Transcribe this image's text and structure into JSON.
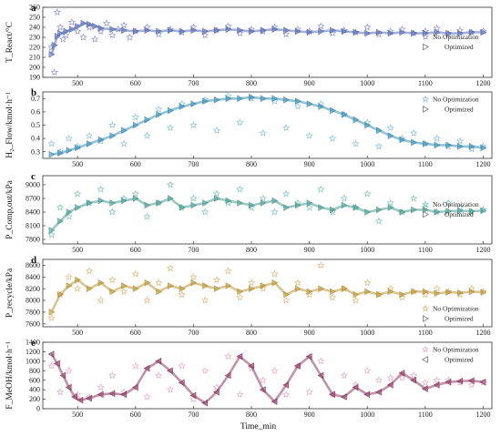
{
  "chart_data": [
    {
      "type": "scatter",
      "panel_label": "a",
      "ylabel": "T_React/°C",
      "xlabel": "",
      "xlim": [
        440,
        1215
      ],
      "ylim": [
        190,
        260
      ],
      "x_ticks": [
        500,
        600,
        700,
        800,
        900,
        1000,
        1100,
        1200
      ],
      "y_ticks": [
        190,
        200,
        210,
        220,
        230,
        240,
        250,
        260
      ],
      "legend": {
        "placement": "right"
      },
      "series": [
        {
          "name": "No Optimization",
          "marker": "star",
          "color": "#8a93d6",
          "x": [
            455,
            460,
            465,
            470,
            475,
            480,
            490,
            500,
            510,
            520,
            530,
            540,
            550,
            560,
            570,
            580,
            590,
            600,
            620,
            640,
            660,
            680,
            700,
            720,
            740,
            760,
            780,
            800,
            820,
            840,
            860,
            880,
            900,
            920,
            940,
            960,
            980,
            1000,
            1020,
            1040,
            1060,
            1080,
            1100,
            1120,
            1140,
            1160,
            1180,
            1200
          ],
          "y": [
            220,
            195,
            255,
            240,
            228,
            232,
            245,
            236,
            230,
            240,
            228,
            236,
            244,
            232,
            238,
            242,
            230,
            236,
            240,
            233,
            238,
            235,
            240,
            232,
            237,
            241,
            234,
            238,
            236,
            240,
            233,
            238,
            236,
            241,
            234,
            237,
            235,
            240,
            233,
            236,
            238,
            234,
            236,
            239,
            233,
            237,
            235,
            236
          ]
        },
        {
          "name": "Optimized",
          "marker": "triangle-right",
          "color": "#5b6fb0",
          "x": [
            455,
            460,
            465,
            470,
            480,
            490,
            500,
            510,
            520,
            530,
            540,
            560,
            580,
            600,
            620,
            640,
            660,
            680,
            700,
            720,
            740,
            760,
            780,
            800,
            820,
            840,
            860,
            880,
            900,
            920,
            940,
            960,
            980,
            1000,
            1020,
            1040,
            1060,
            1080,
            1100,
            1120,
            1140,
            1160,
            1180,
            1200
          ],
          "y": [
            213,
            222,
            231,
            234,
            236,
            238,
            241,
            244,
            243,
            241,
            239,
            238,
            237,
            236,
            237,
            236,
            237,
            236,
            237,
            236,
            237,
            238,
            237,
            236,
            237,
            238,
            237,
            236,
            235,
            236,
            237,
            236,
            235,
            234,
            235,
            234,
            235,
            234,
            234,
            235,
            234,
            234,
            235,
            235
          ]
        }
      ]
    },
    {
      "type": "scatter",
      "panel_label": "b",
      "ylabel": "H₂_Flow/kmol·h⁻¹",
      "xlabel": "",
      "xlim": [
        440,
        1215
      ],
      "ylim": [
        0.25,
        0.75
      ],
      "x_ticks": [
        500,
        600,
        700,
        800,
        900,
        1000,
        1100,
        1200
      ],
      "y_ticks": [
        0.3,
        0.4,
        0.5,
        0.6,
        0.7
      ],
      "legend": {
        "placement": "top-right"
      },
      "series": [
        {
          "name": "No Optimization",
          "marker": "star",
          "color": "#86c0d8",
          "x": [
            455,
            470,
            485,
            500,
            520,
            540,
            560,
            580,
            600,
            620,
            640,
            660,
            680,
            700,
            720,
            740,
            760,
            780,
            800,
            820,
            840,
            860,
            880,
            900,
            920,
            940,
            960,
            980,
            1000,
            1020,
            1040,
            1060,
            1080,
            1100,
            1120,
            1140,
            1160,
            1180,
            1200
          ],
          "y": [
            0.36,
            0.3,
            0.4,
            0.34,
            0.42,
            0.38,
            0.5,
            0.36,
            0.56,
            0.42,
            0.62,
            0.48,
            0.66,
            0.5,
            0.69,
            0.46,
            0.72,
            0.52,
            0.7,
            0.44,
            0.68,
            0.48,
            0.64,
            0.42,
            0.66,
            0.4,
            0.58,
            0.36,
            0.52,
            0.34,
            0.48,
            0.4,
            0.44,
            0.36,
            0.4,
            0.34,
            0.38,
            0.32,
            0.34
          ]
        },
        {
          "name": "Optimized",
          "marker": "triangle-right",
          "color": "#3f8fb3",
          "x": [
            455,
            470,
            485,
            500,
            520,
            540,
            560,
            580,
            600,
            620,
            640,
            660,
            680,
            700,
            720,
            740,
            760,
            780,
            800,
            820,
            840,
            860,
            880,
            900,
            920,
            940,
            960,
            980,
            1000,
            1020,
            1040,
            1060,
            1080,
            1100,
            1120,
            1140,
            1160,
            1180,
            1200
          ],
          "y": [
            0.28,
            0.29,
            0.31,
            0.33,
            0.36,
            0.39,
            0.42,
            0.46,
            0.5,
            0.54,
            0.58,
            0.61,
            0.64,
            0.66,
            0.68,
            0.69,
            0.7,
            0.7,
            0.71,
            0.7,
            0.7,
            0.69,
            0.68,
            0.66,
            0.64,
            0.61,
            0.58,
            0.54,
            0.5,
            0.46,
            0.42,
            0.39,
            0.37,
            0.36,
            0.35,
            0.35,
            0.34,
            0.34,
            0.33
          ]
        }
      ]
    },
    {
      "type": "scatter",
      "panel_label": "c",
      "ylabel": "P_Comp,out/kPa",
      "xlabel": "",
      "xlim": [
        440,
        1215
      ],
      "ylim": [
        7700,
        9200
      ],
      "x_ticks": [
        500,
        600,
        700,
        800,
        900,
        1000,
        1100,
        1200
      ],
      "y_ticks": [
        7800,
        8100,
        8400,
        8700,
        9000
      ],
      "legend": {
        "placement": "right"
      },
      "series": [
        {
          "name": "No Optimization",
          "marker": "star",
          "color": "#7fc4bd",
          "x": [
            455,
            470,
            485,
            500,
            520,
            540,
            560,
            580,
            600,
            620,
            640,
            660,
            680,
            700,
            720,
            740,
            760,
            780,
            800,
            820,
            840,
            860,
            880,
            900,
            920,
            940,
            960,
            980,
            1000,
            1020,
            1040,
            1060,
            1080,
            1100,
            1120,
            1140,
            1160,
            1180,
            1200
          ],
          "y": [
            7900,
            8500,
            8300,
            8800,
            8600,
            8900,
            8400,
            8700,
            8800,
            8300,
            8600,
            9000,
            8500,
            8700,
            8400,
            8800,
            8600,
            8900,
            8500,
            8700,
            8400,
            8800,
            8600,
            8500,
            8900,
            8400,
            8700,
            8500,
            8800,
            8200,
            8600,
            8400,
            8700,
            8500,
            8400,
            8600,
            8500,
            8400,
            8450
          ]
        },
        {
          "name": "Optimized",
          "marker": "triangle-right",
          "color": "#4c9a92",
          "x": [
            455,
            470,
            485,
            500,
            520,
            540,
            560,
            580,
            600,
            620,
            640,
            660,
            680,
            700,
            720,
            740,
            760,
            780,
            800,
            820,
            840,
            860,
            880,
            900,
            920,
            940,
            960,
            980,
            1000,
            1020,
            1040,
            1060,
            1080,
            1100,
            1120,
            1140,
            1160,
            1180,
            1200
          ],
          "y": [
            8000,
            8200,
            8400,
            8500,
            8600,
            8650,
            8600,
            8650,
            8700,
            8550,
            8600,
            8700,
            8500,
            8550,
            8600,
            8700,
            8650,
            8600,
            8550,
            8600,
            8650,
            8500,
            8550,
            8600,
            8500,
            8450,
            8550,
            8500,
            8400,
            8450,
            8500,
            8400,
            8450,
            8450,
            8400,
            8420,
            8430,
            8420,
            8430
          ]
        }
      ]
    },
    {
      "type": "scatter",
      "panel_label": "d",
      "ylabel": "P_recycle/kPa",
      "xlabel": "",
      "xlim": [
        440,
        1215
      ],
      "ylim": [
        7550,
        8700
      ],
      "x_ticks": [
        500,
        600,
        700,
        800,
        900,
        1000,
        1100,
        1200
      ],
      "y_ticks": [
        7600,
        7800,
        8000,
        8200,
        8400,
        8600
      ],
      "legend": {
        "placement": "bottom-right"
      },
      "series": [
        {
          "name": "No Optimization",
          "marker": "star",
          "color": "#e0b77a",
          "x": [
            455,
            470,
            485,
            500,
            520,
            540,
            560,
            580,
            600,
            620,
            640,
            660,
            680,
            700,
            720,
            740,
            760,
            780,
            800,
            820,
            840,
            860,
            880,
            900,
            920,
            940,
            960,
            980,
            1000,
            1020,
            1040,
            1060,
            1080,
            1100,
            1120,
            1140,
            1160,
            1180,
            1200
          ],
          "y": [
            7700,
            8100,
            8400,
            8200,
            8500,
            8000,
            8350,
            8150,
            8450,
            8000,
            8300,
            8550,
            8100,
            8400,
            8000,
            8350,
            8500,
            8050,
            8300,
            8200,
            8450,
            8000,
            8300,
            8100,
            8600,
            8050,
            8200,
            8000,
            8300,
            8100,
            8200,
            8050,
            8150,
            8100,
            8200,
            8150,
            8100,
            8200,
            8150
          ]
        },
        {
          "name": "Optimized",
          "marker": "triangle-right",
          "color": "#b8963d",
          "x": [
            455,
            470,
            485,
            500,
            520,
            540,
            560,
            580,
            600,
            620,
            640,
            660,
            680,
            700,
            720,
            740,
            760,
            780,
            800,
            820,
            840,
            860,
            880,
            900,
            920,
            940,
            960,
            980,
            1000,
            1020,
            1040,
            1060,
            1080,
            1100,
            1120,
            1140,
            1160,
            1180,
            1200
          ],
          "y": [
            7800,
            8100,
            8250,
            8350,
            8200,
            8300,
            8150,
            8250,
            8200,
            8300,
            8150,
            8250,
            8200,
            8300,
            8250,
            8200,
            8250,
            8150,
            8200,
            8250,
            8300,
            8100,
            8200,
            8150,
            8200,
            8150,
            8200,
            8100,
            8150,
            8100,
            8150,
            8100,
            8150,
            8150,
            8120,
            8140,
            8130,
            8150,
            8140
          ]
        }
      ]
    },
    {
      "type": "scatter",
      "panel_label": "e",
      "ylabel": "F_MeOH/kmol·h⁻¹",
      "xlabel": "Time_min",
      "xlim": [
        440,
        1215
      ],
      "ylim": [
        0,
        1400
      ],
      "x_ticks": [
        500,
        600,
        700,
        800,
        900,
        1000,
        1100,
        1200
      ],
      "y_ticks": [
        0,
        200,
        400,
        600,
        800,
        1000,
        1200,
        1400
      ],
      "legend": {
        "placement": "top-right"
      },
      "series": [
        {
          "name": "No Optimization",
          "marker": "star",
          "color": "#e7a9c8",
          "x": [
            455,
            470,
            485,
            500,
            520,
            540,
            560,
            580,
            600,
            620,
            640,
            660,
            680,
            700,
            720,
            740,
            760,
            780,
            800,
            820,
            840,
            860,
            880,
            900,
            920,
            940,
            960,
            980,
            1000,
            1020,
            1040,
            1060,
            1080,
            1100,
            1120,
            1140,
            1160,
            1180,
            1200
          ],
          "y": [
            900,
            350,
            800,
            300,
            250,
            450,
            700,
            350,
            900,
            250,
            700,
            400,
            900,
            200,
            800,
            450,
            1100,
            300,
            850,
            600,
            800,
            300,
            900,
            350,
            1000,
            300,
            700,
            500,
            800,
            600,
            650,
            650,
            700,
            550,
            600,
            600,
            550,
            500,
            550
          ]
        },
        {
          "name": "Optimized",
          "marker": "triangle-left",
          "color": "#8c3a62",
          "x": [
            455,
            465,
            475,
            485,
            495,
            505,
            520,
            540,
            560,
            580,
            600,
            620,
            640,
            660,
            680,
            700,
            720,
            740,
            760,
            780,
            800,
            820,
            840,
            860,
            880,
            900,
            920,
            940,
            960,
            980,
            1000,
            1020,
            1040,
            1060,
            1080,
            1100,
            1120,
            1140,
            1160,
            1180,
            1200
          ],
          "y": [
            1150,
            950,
            700,
            450,
            250,
            180,
            220,
            300,
            320,
            300,
            450,
            850,
            1000,
            800,
            550,
            280,
            120,
            350,
            700,
            1100,
            900,
            400,
            150,
            500,
            900,
            1100,
            700,
            300,
            250,
            450,
            300,
            350,
            500,
            750,
            600,
            420,
            500,
            560,
            580,
            590,
            560
          ]
        }
      ]
    }
  ]
}
